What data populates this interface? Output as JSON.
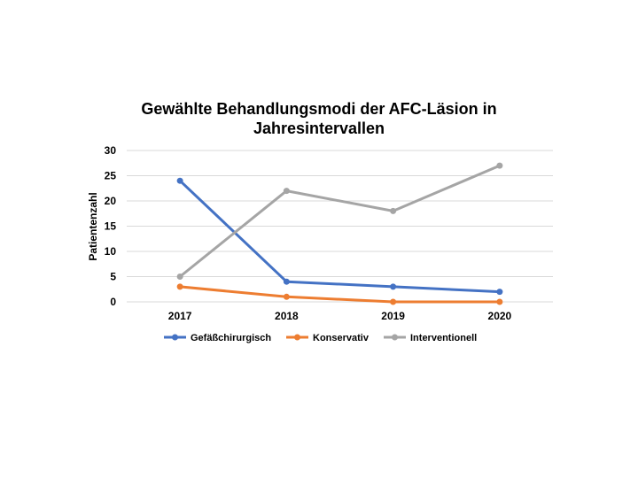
{
  "chart_data": {
    "type": "line",
    "title_lines": [
      "Gewählte Behandlungsmodi der AFC-Läsion in",
      "Jahresintervallen"
    ],
    "xlabel": "",
    "ylabel": "Patientenzahl",
    "categories": [
      "2017",
      "2018",
      "2019",
      "2020"
    ],
    "ylim": [
      0,
      30
    ],
    "yticks": [
      0,
      5,
      10,
      15,
      20,
      25,
      30
    ],
    "grid": true,
    "legend_position": "bottom",
    "series": [
      {
        "name": "Gefäßchirurgisch",
        "color": "#4472c4",
        "values": [
          24,
          4,
          3,
          2
        ]
      },
      {
        "name": "Konservativ",
        "color": "#ed7d31",
        "values": [
          3,
          1,
          0,
          0
        ]
      },
      {
        "name": "Interventionell",
        "color": "#a5a5a5",
        "values": [
          5,
          22,
          18,
          27
        ]
      }
    ]
  }
}
